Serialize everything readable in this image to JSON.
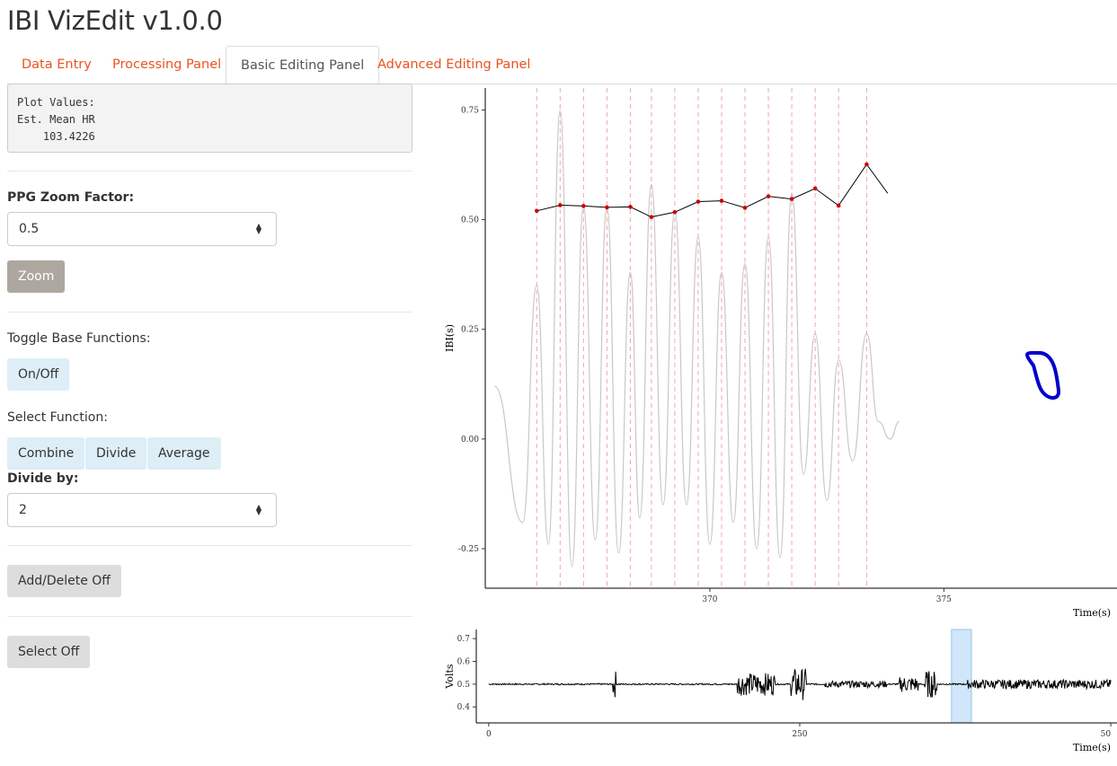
{
  "app": {
    "title": "IBI VizEdit v1.0.0"
  },
  "tabs": [
    {
      "label": "Data Entry"
    },
    {
      "label": "Processing Panel"
    },
    {
      "label": "Basic Editing Panel",
      "active": true
    },
    {
      "label": "Advanced Editing Panel"
    }
  ],
  "plot_values": {
    "line1": "Plot Values:",
    "line2": "Est. Mean HR",
    "line3": "    103.4226"
  },
  "zoom": {
    "label": "PPG Zoom Factor:",
    "value": "0.5",
    "button": "Zoom"
  },
  "toggle": {
    "label": "Toggle Base Functions:",
    "button": "On/Off"
  },
  "select_function": {
    "label": "Select Function:",
    "buttons": [
      "Combine",
      "Divide",
      "Average"
    ]
  },
  "divide": {
    "label": "Divide by:",
    "value": "2"
  },
  "add_delete": {
    "button": "Add/Delete Off"
  },
  "select": {
    "button": "Select Off"
  },
  "colors": {
    "accent": "#e95420",
    "zoom_button": "#aea79f",
    "info_button": "#ddeef6",
    "ibi_points": "#cc0000",
    "peak_lines": "#f4a6a6",
    "ppg_trace": "#c8c8c8",
    "annotation": "#0000cc",
    "selection": "#cfe6fb"
  },
  "chart_data": [
    {
      "type": "line",
      "ylabel": "IBI(s)",
      "xlabel": "Time(s)",
      "xlim": [
        365.2,
        378.7
      ],
      "ylim": [
        -0.34,
        0.8
      ],
      "xticks": [
        "370",
        "375"
      ],
      "yticks": [
        "-0.25",
        "0.00",
        "0.25",
        "0.50",
        "0.75"
      ],
      "grid": false,
      "series": [
        {
          "kind": "ibi",
          "x": [
            366.3,
            366.8,
            367.3,
            367.8,
            368.3,
            368.75,
            369.25,
            369.75,
            370.25,
            370.75,
            371.25,
            371.75,
            372.25,
            372.75
          ],
          "y": [
            0.52,
            0.533,
            0.531,
            0.528,
            0.529,
            0.506,
            0.517,
            0.541,
            0.543,
            0.527,
            0.553,
            0.547,
            0.571,
            0.532
          ]
        }
      ],
      "ibi_extension": {
        "x": [
          372.75,
          373.35,
          373.8
        ],
        "y": [
          0.532,
          0.626,
          0.56
        ]
      },
      "peak_markers_x": [
        366.3,
        366.8,
        367.3,
        367.8,
        368.3,
        368.75,
        369.25,
        369.75,
        370.25,
        370.75,
        371.25,
        371.75,
        372.25,
        372.75,
        373.35
      ],
      "ppg_trace": {
        "peaks_x": [
          366.3,
          366.8,
          367.3,
          367.8,
          368.3,
          368.75,
          369.25,
          369.75,
          370.25,
          370.75,
          371.25,
          371.75,
          372.25,
          372.75,
          373.35
        ],
        "peaks_y": [
          0.35,
          0.75,
          0.53,
          0.53,
          0.38,
          0.58,
          0.52,
          0.46,
          0.38,
          0.4,
          0.46,
          0.56,
          0.24,
          0.18,
          0.24
        ],
        "troughs_x": [
          366.0,
          366.55,
          367.05,
          367.55,
          368.05,
          368.5,
          369.0,
          369.5,
          370.0,
          370.5,
          371.0,
          371.5,
          372.0,
          372.5,
          373.05,
          373.6
        ],
        "troughs_y": [
          -0.19,
          -0.24,
          -0.29,
          -0.23,
          -0.26,
          -0.18,
          -0.15,
          -0.15,
          -0.24,
          -0.19,
          -0.25,
          -0.27,
          -0.08,
          -0.14,
          -0.05,
          0.04
        ]
      }
    },
    {
      "type": "line",
      "ylabel": "Volts",
      "xlabel": "Time(s)",
      "xlim": [
        -10,
        505
      ],
      "ylim": [
        0.33,
        0.74
      ],
      "xticks": [
        "0",
        "250",
        "50"
      ],
      "yticks": [
        "0.4",
        "0.5",
        "0.6",
        "0.7"
      ],
      "baseline": 0.5,
      "selection": [
        372,
        388
      ]
    }
  ]
}
